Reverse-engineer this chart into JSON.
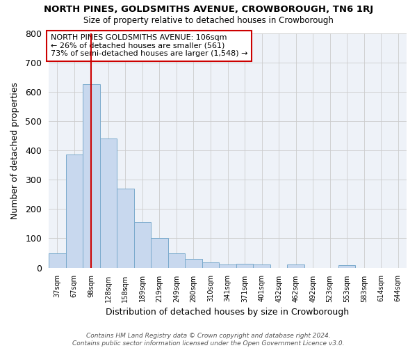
{
  "title": "NORTH PINES, GOLDSMITHS AVENUE, CROWBOROUGH, TN6 1RJ",
  "subtitle": "Size of property relative to detached houses in Crowborough",
  "xlabel": "Distribution of detached houses by size in Crowborough",
  "ylabel": "Number of detached properties",
  "bar_color": "#c8d8ee",
  "bar_edge_color": "#7aaacc",
  "bg_color": "#eef2f8",
  "grid_color": "#cccccc",
  "fig_color": "#ffffff",
  "categories": [
    "37sqm",
    "67sqm",
    "98sqm",
    "128sqm",
    "158sqm",
    "189sqm",
    "219sqm",
    "249sqm",
    "280sqm",
    "310sqm",
    "341sqm",
    "371sqm",
    "401sqm",
    "432sqm",
    "462sqm",
    "492sqm",
    "523sqm",
    "553sqm",
    "583sqm",
    "614sqm",
    "644sqm"
  ],
  "values": [
    50,
    385,
    625,
    440,
    270,
    155,
    100,
    50,
    30,
    17,
    10,
    13,
    10,
    0,
    10,
    0,
    0,
    8,
    0,
    0,
    0
  ],
  "property_line_x": 2.0,
  "property_line_color": "#cc0000",
  "annotation_text": "NORTH PINES GOLDSMITHS AVENUE: 106sqm\n← 26% of detached houses are smaller (561)\n73% of semi-detached houses are larger (1,548) →",
  "annotation_box_color": "#ffffff",
  "annotation_box_edge": "#cc0000",
  "footer": "Contains HM Land Registry data © Crown copyright and database right 2024.\nContains public sector information licensed under the Open Government Licence v3.0.",
  "ylim": [
    0,
    800
  ],
  "yticks": [
    0,
    100,
    200,
    300,
    400,
    500,
    600,
    700,
    800
  ]
}
